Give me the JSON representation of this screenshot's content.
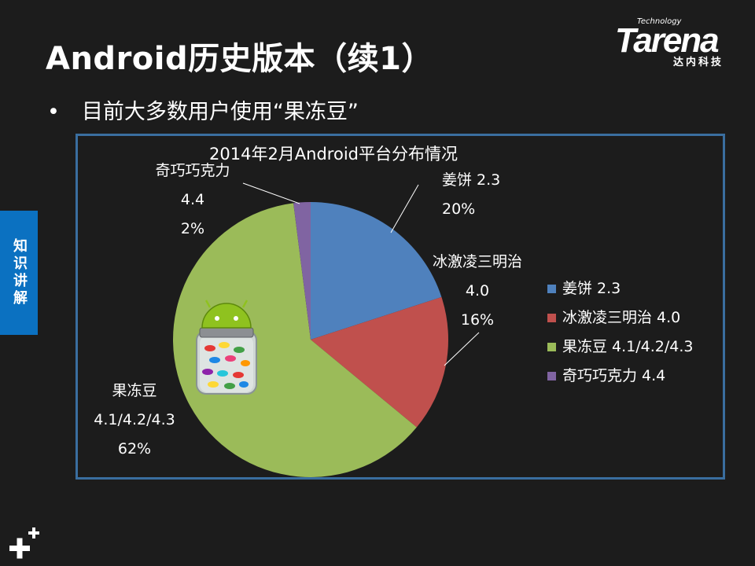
{
  "slide": {
    "title": "Android历史版本（续1）",
    "bullet": "目前大多数用户使用“果冻豆”",
    "side_tab": "知识讲解"
  },
  "logo": {
    "technology": "Technology",
    "brand": "Tarena",
    "subtitle": "达内科技"
  },
  "chart_data": {
    "type": "pie",
    "title": "2014年2月Android平台分布情况",
    "slices": [
      {
        "name": "姜饼 2.3",
        "value": 20,
        "label_lines": [
          "姜饼 2.3",
          "20%"
        ],
        "color": "#4f81bd"
      },
      {
        "name": "冰激凌三明治 4.0",
        "value": 16,
        "label_lines": [
          "冰激凌三明治",
          "4.0",
          "16%"
        ],
        "color": "#c0504d"
      },
      {
        "name": "果冻豆 4.1/4.2/4.3",
        "value": 62,
        "label_lines": [
          "果冻豆",
          "4.1/4.2/4.3",
          "62%"
        ],
        "color": "#9bbb59"
      },
      {
        "name": "奇巧巧克力 4.4",
        "value": 2,
        "label_lines": [
          "奇巧巧克力",
          "4.4",
          "2%"
        ],
        "color": "#8064a2"
      }
    ],
    "legend": [
      "姜饼 2.3",
      "冰激凌三明治 4.0",
      "果冻豆 4.1/4.2/4.3",
      "奇巧巧克力 4.4"
    ],
    "legend_position": "right"
  },
  "images": {
    "jelly_bean_jar": "android-jelly-bean-jar-icon"
  }
}
